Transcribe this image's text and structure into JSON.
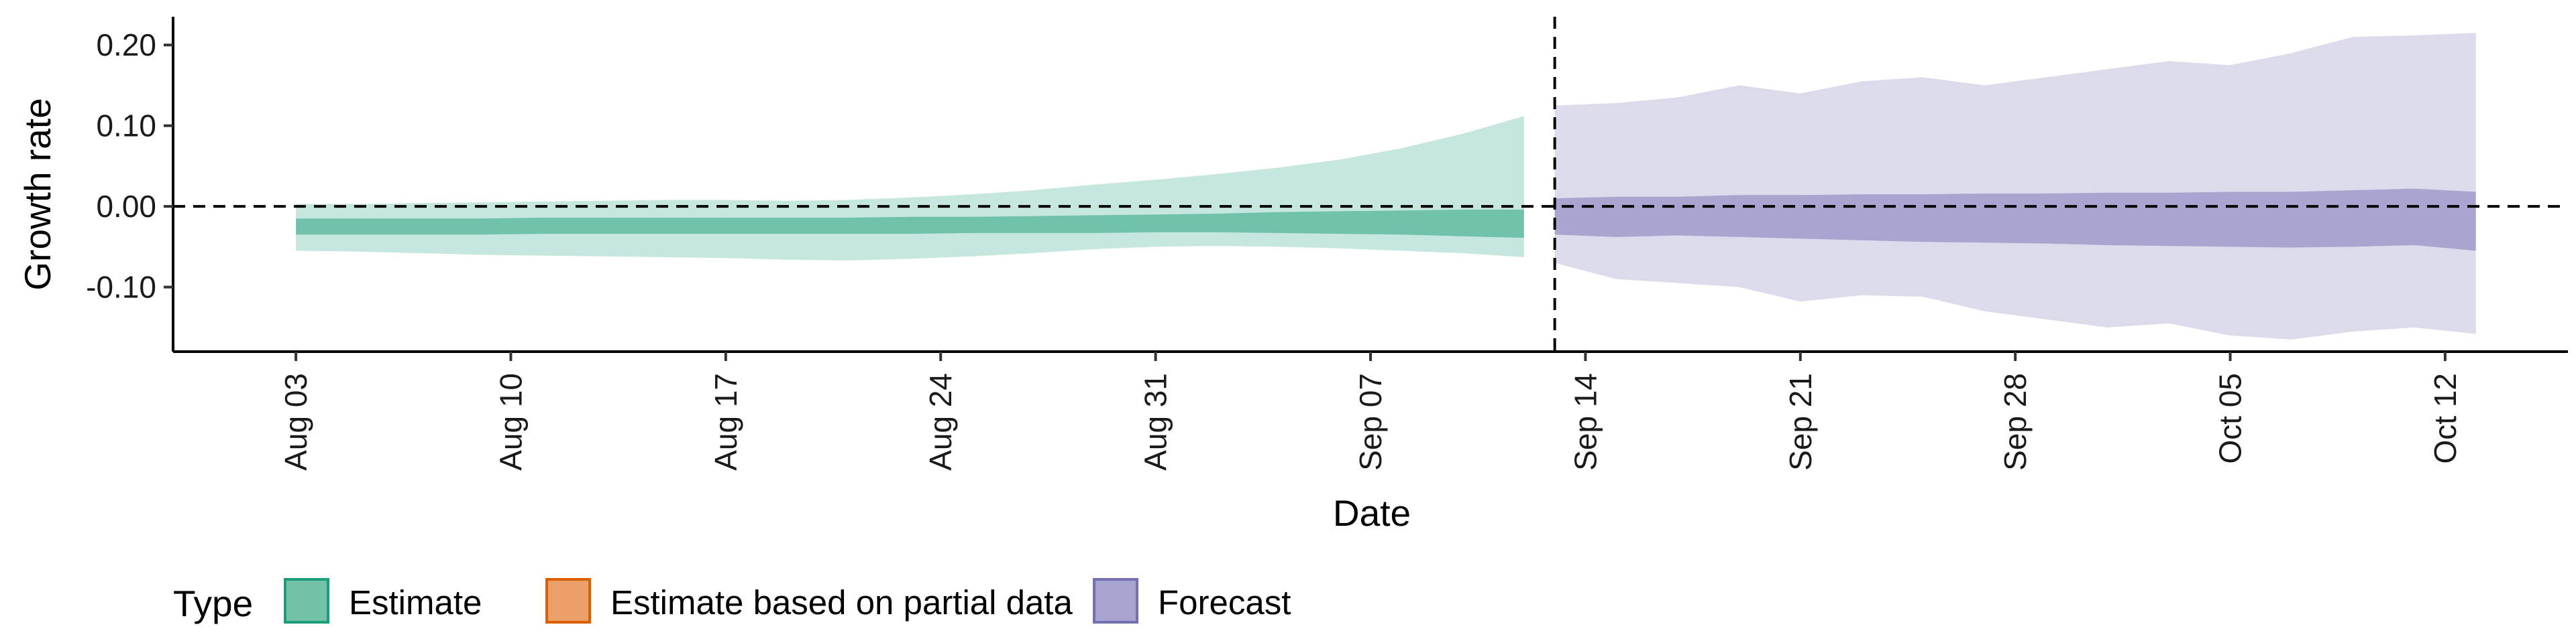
{
  "chart_data": {
    "type": "area",
    "xlabel": "Date",
    "ylabel": "Growth rate",
    "ylim": [
      -0.18,
      0.235
    ],
    "yticks": [
      0.2,
      0.1,
      0.0,
      -0.1
    ],
    "ytick_labels": [
      "0.20",
      "0.10",
      "0.00",
      "-0.10"
    ],
    "xticks": [
      "2020-08-03",
      "2020-08-10",
      "2020-08-17",
      "2020-08-24",
      "2020-08-31",
      "2020-09-07",
      "2020-09-14",
      "2020-09-21",
      "2020-09-28",
      "2020-10-05",
      "2020-10-12"
    ],
    "xtick_labels": [
      "Aug 03",
      "Aug 10",
      "Aug 17",
      "Aug 24",
      "Aug 31",
      "Sep 07",
      "Sep 14",
      "Sep 21",
      "Sep 28",
      "Oct 05",
      "Oct 12"
    ],
    "xlim": [
      "2020-07-30",
      "2020-10-16"
    ],
    "reference_line_y": 0,
    "vertical_line_x": "2020-09-13",
    "grid": false,
    "legend": {
      "title": "Type",
      "position": "bottom-left",
      "entries": [
        {
          "label": "Estimate",
          "fill": "#73c2a7",
          "stroke": "#1b9e77"
        },
        {
          "label": "Estimate based on partial data",
          "fill": "#eba069",
          "stroke": "#d95f02"
        },
        {
          "label": "Forecast",
          "fill": "#a8a4d0",
          "stroke": "#7570b3"
        }
      ]
    },
    "series": [
      {
        "name": "Estimate",
        "color": "#1b9e77",
        "x": [
          "2020-08-03",
          "2020-08-05",
          "2020-08-07",
          "2020-08-09",
          "2020-08-11",
          "2020-08-13",
          "2020-08-15",
          "2020-08-17",
          "2020-08-19",
          "2020-08-21",
          "2020-08-23",
          "2020-08-25",
          "2020-08-27",
          "2020-08-29",
          "2020-08-31",
          "2020-09-02",
          "2020-09-04",
          "2020-09-06",
          "2020-09-08",
          "2020-09-10",
          "2020-09-12"
        ],
        "lower_90": [
          -0.055,
          -0.056,
          -0.058,
          -0.06,
          -0.061,
          -0.062,
          -0.063,
          -0.064,
          -0.066,
          -0.067,
          -0.065,
          -0.062,
          -0.058,
          -0.053,
          -0.05,
          -0.049,
          -0.05,
          -0.052,
          -0.055,
          -0.058,
          -0.063
        ],
        "upper_90": [
          0.003,
          0.003,
          0.004,
          0.005,
          0.006,
          0.007,
          0.008,
          0.008,
          0.007,
          0.008,
          0.011,
          0.015,
          0.02,
          0.027,
          0.033,
          0.04,
          0.048,
          0.058,
          0.072,
          0.09,
          0.112
        ],
        "lower_50": [
          -0.035,
          -0.035,
          -0.035,
          -0.035,
          -0.034,
          -0.034,
          -0.034,
          -0.034,
          -0.034,
          -0.034,
          -0.034,
          -0.033,
          -0.033,
          -0.033,
          -0.032,
          -0.032,
          -0.033,
          -0.034,
          -0.035,
          -0.037,
          -0.039
        ],
        "upper_50": [
          -0.015,
          -0.015,
          -0.015,
          -0.015,
          -0.014,
          -0.014,
          -0.014,
          -0.014,
          -0.014,
          -0.014,
          -0.013,
          -0.013,
          -0.012,
          -0.011,
          -0.01,
          -0.009,
          -0.007,
          -0.006,
          -0.005,
          -0.004,
          -0.004
        ]
      },
      {
        "name": "Forecast",
        "color": "#7570b3",
        "x": [
          "2020-09-13",
          "2020-09-15",
          "2020-09-17",
          "2020-09-19",
          "2020-09-21",
          "2020-09-23",
          "2020-09-25",
          "2020-09-27",
          "2020-09-29",
          "2020-10-01",
          "2020-10-03",
          "2020-10-05",
          "2020-10-07",
          "2020-10-09",
          "2020-10-11",
          "2020-10-13"
        ],
        "lower_90": [
          -0.07,
          -0.09,
          -0.095,
          -0.1,
          -0.118,
          -0.11,
          -0.112,
          -0.13,
          -0.14,
          -0.15,
          -0.145,
          -0.16,
          -0.165,
          -0.155,
          -0.15,
          -0.158
        ],
        "upper_90": [
          0.125,
          0.128,
          0.135,
          0.15,
          0.14,
          0.155,
          0.16,
          0.15,
          0.16,
          0.17,
          0.18,
          0.175,
          0.19,
          0.21,
          0.212,
          0.215
        ],
        "lower_50": [
          -0.035,
          -0.038,
          -0.036,
          -0.038,
          -0.04,
          -0.042,
          -0.044,
          -0.045,
          -0.046,
          -0.048,
          -0.049,
          -0.05,
          -0.051,
          -0.05,
          -0.048,
          -0.055
        ],
        "upper_50": [
          0.01,
          0.012,
          0.012,
          0.014,
          0.014,
          0.015,
          0.015,
          0.016,
          0.016,
          0.017,
          0.017,
          0.018,
          0.018,
          0.02,
          0.022,
          0.018
        ]
      }
    ]
  }
}
